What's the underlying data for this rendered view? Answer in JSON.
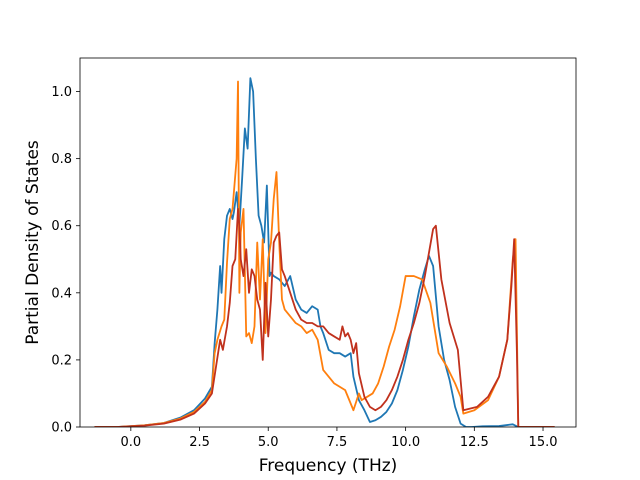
{
  "chart_data": {
    "type": "line",
    "xlabel": "Frequency (THz)",
    "ylabel": "Partial Density of States",
    "xlim": [
      -1.85,
      16.2
    ],
    "ylim": [
      0.0,
      1.1
    ],
    "xticks": [
      0.0,
      2.5,
      5.0,
      7.5,
      10.0,
      12.5,
      15.0
    ],
    "xtick_labels": [
      "0.0",
      "2.5",
      "5.0",
      "7.5",
      "10.0",
      "12.5",
      "15.0"
    ],
    "yticks": [
      0.0,
      0.2,
      0.4,
      0.6,
      0.8,
      1.0
    ],
    "ytick_labels": [
      "0.0",
      "0.2",
      "0.4",
      "0.6",
      "0.8",
      "1.0"
    ],
    "grid": false,
    "legend": "none",
    "series": [
      {
        "color": "#1f77b4",
        "x": [
          -1.3,
          -0.5,
          0.5,
          1.2,
          1.8,
          2.3,
          2.7,
          2.95,
          3.05,
          3.15,
          3.25,
          3.3,
          3.4,
          3.5,
          3.6,
          3.7,
          3.75,
          3.85,
          3.95,
          4.05,
          4.15,
          4.25,
          4.35,
          4.45,
          4.55,
          4.65,
          4.75,
          4.85,
          4.95,
          5.05,
          5.1,
          5.2,
          5.4,
          5.6,
          5.8,
          6.0,
          6.2,
          6.4,
          6.6,
          6.8,
          6.9,
          7.0,
          7.2,
          7.4,
          7.6,
          7.8,
          8.0,
          8.1,
          8.3,
          8.5,
          8.7,
          8.9,
          9.1,
          9.3,
          9.5,
          9.7,
          9.9,
          10.1,
          10.3,
          10.5,
          10.7,
          10.85,
          11.0,
          11.2,
          11.4,
          11.6,
          11.8,
          12.0,
          12.2,
          12.4,
          12.8,
          13.4,
          13.9,
          14.0,
          14.1,
          14.5,
          15.4
        ],
        "y": [
          0.0,
          0.0,
          0.005,
          0.012,
          0.028,
          0.05,
          0.085,
          0.12,
          0.25,
          0.35,
          0.48,
          0.4,
          0.56,
          0.63,
          0.65,
          0.62,
          0.64,
          0.7,
          0.6,
          0.74,
          0.89,
          0.83,
          1.04,
          1.0,
          0.8,
          0.63,
          0.6,
          0.55,
          0.72,
          0.45,
          0.46,
          0.45,
          0.44,
          0.42,
          0.45,
          0.38,
          0.35,
          0.34,
          0.36,
          0.35,
          0.3,
          0.28,
          0.23,
          0.22,
          0.22,
          0.21,
          0.22,
          0.15,
          0.08,
          0.05,
          0.015,
          0.02,
          0.03,
          0.045,
          0.07,
          0.11,
          0.17,
          0.24,
          0.33,
          0.41,
          0.47,
          0.51,
          0.48,
          0.3,
          0.2,
          0.14,
          0.06,
          0.01,
          0.0,
          0.0,
          0.002,
          0.003,
          0.008,
          0.004,
          0.0,
          0.0,
          0.0
        ]
      },
      {
        "color": "#ff7f0e",
        "x": [
          -1.3,
          -0.5,
          0.5,
          1.2,
          1.8,
          2.3,
          2.7,
          2.95,
          3.05,
          3.15,
          3.3,
          3.4,
          3.5,
          3.6,
          3.7,
          3.8,
          3.85,
          3.9,
          3.95,
          4.0,
          4.1,
          4.2,
          4.3,
          4.4,
          4.5,
          4.6,
          4.7,
          4.8,
          4.9,
          5.0,
          5.1,
          5.2,
          5.3,
          5.4,
          5.5,
          5.6,
          5.8,
          6.0,
          6.2,
          6.4,
          6.6,
          6.8,
          7.0,
          7.2,
          7.4,
          7.6,
          7.8,
          8.0,
          8.1,
          8.3,
          8.4,
          8.6,
          8.8,
          9.0,
          9.2,
          9.4,
          9.6,
          9.8,
          10.0,
          10.3,
          10.6,
          10.9,
          11.2,
          11.5,
          11.8,
          12.0,
          12.1,
          12.5,
          13.0,
          13.4,
          13.7,
          13.9,
          14.0,
          14.1,
          15.4
        ],
        "y": [
          0.0,
          0.0,
          0.005,
          0.012,
          0.025,
          0.045,
          0.075,
          0.11,
          0.22,
          0.26,
          0.3,
          0.32,
          0.49,
          0.62,
          0.65,
          0.75,
          0.8,
          1.03,
          0.4,
          0.58,
          0.65,
          0.27,
          0.28,
          0.25,
          0.3,
          0.55,
          0.38,
          0.56,
          0.28,
          0.5,
          0.55,
          0.68,
          0.76,
          0.55,
          0.38,
          0.35,
          0.33,
          0.31,
          0.3,
          0.28,
          0.29,
          0.26,
          0.17,
          0.15,
          0.13,
          0.12,
          0.11,
          0.07,
          0.05,
          0.1,
          0.08,
          0.09,
          0.1,
          0.13,
          0.18,
          0.24,
          0.29,
          0.36,
          0.45,
          0.45,
          0.44,
          0.37,
          0.22,
          0.18,
          0.13,
          0.09,
          0.04,
          0.05,
          0.08,
          0.15,
          0.26,
          0.5,
          0.56,
          0.0,
          0.0
        ]
      },
      {
        "color": "#c0311d",
        "x": [
          -1.3,
          -0.5,
          0.5,
          1.2,
          1.8,
          2.3,
          2.7,
          2.95,
          3.1,
          3.25,
          3.35,
          3.5,
          3.6,
          3.7,
          3.8,
          3.9,
          3.95,
          4.0,
          4.1,
          4.2,
          4.3,
          4.4,
          4.5,
          4.6,
          4.7,
          4.8,
          4.9,
          5.0,
          5.1,
          5.2,
          5.3,
          5.4,
          5.5,
          5.6,
          5.8,
          6.0,
          6.2,
          6.4,
          6.6,
          6.8,
          7.0,
          7.2,
          7.4,
          7.6,
          7.7,
          7.8,
          7.9,
          8.0,
          8.1,
          8.2,
          8.3,
          8.5,
          8.7,
          8.9,
          9.1,
          9.3,
          9.5,
          9.7,
          9.9,
          10.1,
          10.3,
          10.5,
          10.7,
          10.85,
          11.0,
          11.1,
          11.3,
          11.6,
          11.9,
          12.1,
          12.6,
          13.0,
          13.4,
          13.7,
          13.85,
          13.95,
          14.05,
          14.1,
          15.4
        ],
        "y": [
          0.0,
          0.0,
          0.004,
          0.01,
          0.022,
          0.04,
          0.07,
          0.1,
          0.18,
          0.26,
          0.23,
          0.3,
          0.37,
          0.48,
          0.5,
          0.65,
          0.6,
          0.5,
          0.45,
          0.53,
          0.4,
          0.47,
          0.45,
          0.38,
          0.35,
          0.2,
          0.43,
          0.27,
          0.38,
          0.55,
          0.57,
          0.58,
          0.47,
          0.45,
          0.4,
          0.35,
          0.32,
          0.31,
          0.31,
          0.3,
          0.3,
          0.28,
          0.27,
          0.26,
          0.3,
          0.27,
          0.28,
          0.26,
          0.22,
          0.25,
          0.16,
          0.09,
          0.06,
          0.05,
          0.06,
          0.08,
          0.11,
          0.15,
          0.2,
          0.26,
          0.31,
          0.37,
          0.45,
          0.52,
          0.59,
          0.6,
          0.44,
          0.31,
          0.23,
          0.05,
          0.06,
          0.09,
          0.15,
          0.26,
          0.42,
          0.56,
          0.22,
          0.0,
          0.0
        ]
      }
    ]
  }
}
